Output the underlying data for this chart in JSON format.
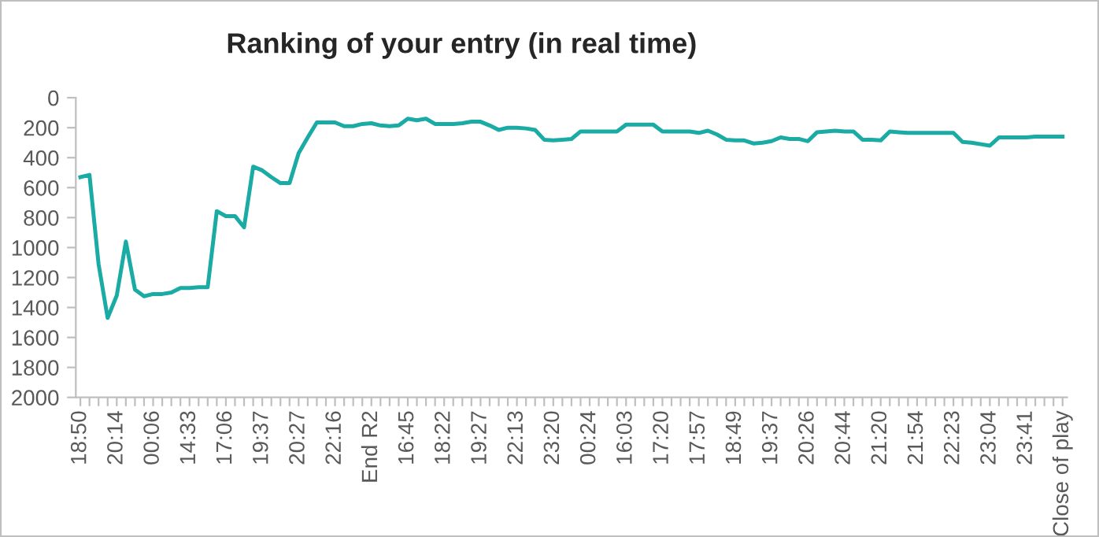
{
  "chart_data": {
    "type": "line",
    "title": "Ranking of your entry (in real time)",
    "categories": [
      "18:50",
      null,
      null,
      null,
      "20:14",
      null,
      null,
      null,
      "00:06",
      null,
      null,
      null,
      "14:33",
      null,
      null,
      null,
      "17:06",
      null,
      null,
      null,
      "19:37",
      null,
      null,
      null,
      "20:27",
      null,
      null,
      null,
      "22:16",
      null,
      null,
      null,
      "End R2",
      null,
      null,
      null,
      "16:45",
      null,
      null,
      null,
      "18:22",
      null,
      null,
      null,
      "19:27",
      null,
      null,
      null,
      "22:13",
      null,
      null,
      null,
      "23:20",
      null,
      null,
      null,
      "00:24",
      null,
      null,
      null,
      "16:03",
      null,
      null,
      null,
      "17:20",
      null,
      null,
      null,
      "17:57",
      null,
      null,
      null,
      "18:49",
      null,
      null,
      null,
      "19:37",
      null,
      null,
      null,
      "20:26",
      null,
      null,
      null,
      "20:44",
      null,
      null,
      null,
      "21:20",
      null,
      null,
      null,
      "21:54",
      null,
      null,
      null,
      "22:23",
      null,
      null,
      null,
      "23:04",
      null,
      null,
      null,
      "23:41",
      null,
      null,
      null,
      "Close of play"
    ],
    "series": [
      {
        "color": "#1aaba5",
        "values": [
          530,
          515,
          1110,
          1470,
          1320,
          960,
          1280,
          1325,
          1310,
          1310,
          1300,
          1270,
          1270,
          1265,
          1265,
          757,
          790,
          790,
          865,
          460,
          485,
          530,
          570,
          570,
          370,
          265,
          165,
          165,
          165,
          190,
          190,
          175,
          170,
          185,
          190,
          185,
          140,
          150,
          140,
          175,
          175,
          175,
          170,
          160,
          160,
          185,
          215,
          200,
          200,
          205,
          215,
          280,
          285,
          280,
          275,
          225,
          225,
          225,
          225,
          225,
          180,
          180,
          180,
          180,
          225,
          225,
          225,
          225,
          235,
          220,
          245,
          280,
          285,
          285,
          305,
          300,
          290,
          265,
          275,
          275,
          290,
          230,
          225,
          220,
          225,
          225,
          280,
          280,
          285,
          225,
          230,
          235,
          235,
          235,
          235,
          235,
          235,
          295,
          300,
          310,
          320,
          265,
          265,
          265,
          265,
          260,
          260,
          260,
          260
        ]
      }
    ],
    "ylim": [
      2000,
      0
    ],
    "yticks": [
      0,
      200,
      400,
      600,
      800,
      1000,
      1200,
      1400,
      1600,
      1800,
      2000
    ],
    "grid": false,
    "legend": false,
    "marker": "none",
    "line_style": "solid"
  }
}
